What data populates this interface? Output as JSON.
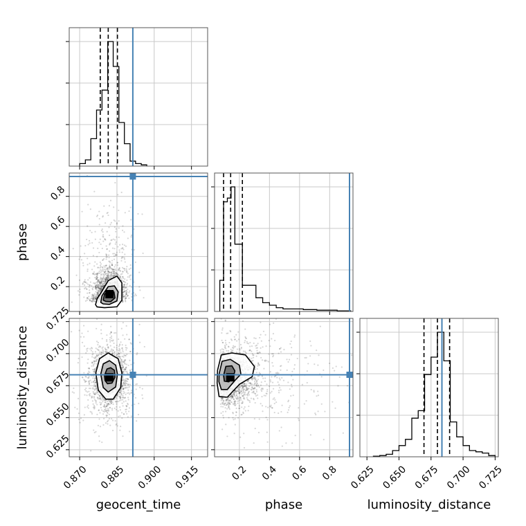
{
  "chart_data": {
    "type": "corner",
    "parameters": [
      "geocent_time",
      "phase",
      "luminosity_distance"
    ],
    "colors": {
      "truth": "#4682b4",
      "hist": "#000000",
      "grid": "#c8c8c8",
      "points": "#000000"
    },
    "grid": true,
    "ranges": {
      "geocent_time": [
        0.8658,
        0.9215
      ],
      "phase": [
        0.035,
        0.955
      ],
      "luminosity_distance": [
        0.6195,
        0.7275
      ]
    },
    "ticks": {
      "geocent_time": [
        0.87,
        0.885,
        0.9,
        0.915
      ],
      "phase": [
        0.2,
        0.4,
        0.6,
        0.8
      ],
      "luminosity_distance": [
        0.625,
        0.65,
        0.675,
        0.7,
        0.725
      ]
    },
    "tick_labels": {
      "geocent_time": [
        "0.870",
        "0.885",
        "0.900",
        "0.915"
      ],
      "phase": [
        "0.2",
        "0.4",
        "0.6",
        "0.8"
      ],
      "luminosity_distance": [
        "0.625",
        "0.650",
        "0.675",
        "0.700",
        "0.725"
      ]
    },
    "truths": {
      "geocent_time": 0.8914,
      "phase": 0.932,
      "luminosity_distance": 0.6835
    },
    "quantiles": {
      "geocent_time": [
        0.8783,
        0.8815,
        0.8852
      ],
      "phase": [
        0.095,
        0.142,
        0.22
      ],
      "luminosity_distance": [
        0.6695,
        0.68,
        0.6895
      ]
    },
    "histograms": {
      "geocent_time": {
        "edges": [
          0.87,
          0.8723,
          0.8745,
          0.8768,
          0.879,
          0.8813,
          0.8835,
          0.8858,
          0.888,
          0.8903,
          0.8925,
          0.8948,
          0.897
        ],
        "counts": [
          0.02,
          0.05,
          0.22,
          0.45,
          0.61,
          1.0,
          0.8,
          0.35,
          0.18,
          0.04,
          0.02,
          0.01
        ]
      },
      "phase": {
        "edges": [
          0.07,
          0.095,
          0.12,
          0.145,
          0.17,
          0.195,
          0.22,
          0.265,
          0.31,
          0.355,
          0.4,
          0.445,
          0.49,
          0.535,
          0.58,
          0.625,
          0.67,
          0.715,
          0.76,
          0.805,
          0.85,
          0.895,
          0.94
        ],
        "counts": [
          0.25,
          0.88,
          0.91,
          1.0,
          0.54,
          0.54,
          0.21,
          0.21,
          0.11,
          0.07,
          0.05,
          0.03,
          0.02,
          0.02,
          0.02,
          0.015,
          0.015,
          0.01,
          0.01,
          0.01,
          0.005,
          0.005
        ]
      },
      "luminosity_distance": {
        "edges": [
          0.63,
          0.635,
          0.64,
          0.645,
          0.65,
          0.655,
          0.66,
          0.665,
          0.67,
          0.675,
          0.68,
          0.685,
          0.69,
          0.695,
          0.7,
          0.705,
          0.71,
          0.715,
          0.72,
          0.725
        ],
        "counts": [
          0.005,
          0.01,
          0.02,
          0.05,
          0.09,
          0.14,
          0.31,
          0.37,
          0.66,
          0.8,
          1.0,
          0.77,
          0.28,
          0.16,
          0.09,
          0.05,
          0.04,
          0.03,
          0.01
        ]
      }
    },
    "scatter_centers": {
      "phase_vs_geocent_time": {
        "x": 0.882,
        "y": 0.15,
        "sx": 0.0032,
        "sy": 0.09
      },
      "luminosity_distance_vs_geocent_time": {
        "x": 0.882,
        "y": 0.6815,
        "sx": 0.0035,
        "sy": 0.0105
      },
      "luminosity_distance_vs_phase": {
        "x": 0.14,
        "y": 0.6815,
        "sx": 0.11,
        "sy": 0.0105
      }
    },
    "contours": {
      "phase_vs_geocent_time": [
        {
          "level": "outer",
          "points": [
            [
              0.8764,
              0.08
            ],
            [
              0.877,
              0.118
            ],
            [
              0.879,
              0.17
            ],
            [
              0.8815,
              0.24
            ],
            [
              0.885,
              0.27
            ],
            [
              0.887,
              0.225
            ],
            [
              0.887,
              0.11
            ],
            [
              0.885,
              0.066
            ],
            [
              0.88,
              0.06
            ],
            [
              0.877,
              0.065
            ]
          ]
        },
        {
          "level": "mid",
          "points": [
            [
              0.8785,
              0.095
            ],
            [
              0.879,
              0.14
            ],
            [
              0.8815,
              0.2
            ],
            [
              0.884,
              0.205
            ],
            [
              0.8855,
              0.165
            ],
            [
              0.885,
              0.105
            ],
            [
              0.882,
              0.082
            ],
            [
              0.8795,
              0.085
            ]
          ]
        },
        {
          "level": "inner",
          "points": [
            [
              0.8795,
              0.11
            ],
            [
              0.88,
              0.15
            ],
            [
              0.882,
              0.175
            ],
            [
              0.8838,
              0.165
            ],
            [
              0.8842,
              0.125
            ],
            [
              0.8825,
              0.1
            ],
            [
              0.8805,
              0.102
            ]
          ]
        }
      ],
      "luminosity_distance_vs_geocent_time": [
        {
          "level": "outer",
          "points": [
            [
              0.8765,
              0.685
            ],
            [
              0.878,
              0.696
            ],
            [
              0.8815,
              0.7005
            ],
            [
              0.8855,
              0.696
            ],
            [
              0.887,
              0.685
            ],
            [
              0.8865,
              0.6735
            ],
            [
              0.8835,
              0.6645
            ],
            [
              0.8805,
              0.6645
            ],
            [
              0.8775,
              0.6715
            ]
          ]
        },
        {
          "level": "mid",
          "points": [
            [
              0.8785,
              0.684
            ],
            [
              0.8795,
              0.692
            ],
            [
              0.882,
              0.6945
            ],
            [
              0.8845,
              0.691
            ],
            [
              0.8852,
              0.684
            ],
            [
              0.8845,
              0.674
            ],
            [
              0.8815,
              0.67
            ],
            [
              0.8795,
              0.6735
            ]
          ]
        },
        {
          "level": "inner",
          "points": [
            [
              0.88,
              0.683
            ],
            [
              0.881,
              0.688
            ],
            [
              0.8825,
              0.689
            ],
            [
              0.884,
              0.687
            ],
            [
              0.8842,
              0.6815
            ],
            [
              0.883,
              0.677
            ],
            [
              0.8812,
              0.6765
            ],
            [
              0.8802,
              0.679
            ]
          ]
        }
      ],
      "luminosity_distance_vs_phase": [
        {
          "level": "outer",
          "points": [
            [
              0.055,
              0.687
            ],
            [
              0.08,
              0.699
            ],
            [
              0.15,
              0.7005
            ],
            [
              0.24,
              0.699
            ],
            [
              0.3,
              0.69
            ],
            [
              0.285,
              0.682
            ],
            [
              0.2,
              0.676
            ],
            [
              0.12,
              0.666
            ],
            [
              0.065,
              0.6665
            ],
            [
              0.052,
              0.677
            ]
          ]
        },
        {
          "level": "mid",
          "points": [
            [
              0.065,
              0.684
            ],
            [
              0.085,
              0.694
            ],
            [
              0.14,
              0.6955
            ],
            [
              0.2,
              0.691
            ],
            [
              0.21,
              0.684
            ],
            [
              0.17,
              0.679
            ],
            [
              0.12,
              0.672
            ],
            [
              0.08,
              0.672
            ],
            [
              0.064,
              0.678
            ]
          ]
        },
        {
          "level": "inner",
          "points": [
            [
              0.095,
              0.683
            ],
            [
              0.11,
              0.69
            ],
            [
              0.15,
              0.6905
            ],
            [
              0.17,
              0.6865
            ],
            [
              0.16,
              0.6815
            ],
            [
              0.13,
              0.678
            ],
            [
              0.1,
              0.6785
            ]
          ]
        }
      ]
    }
  }
}
